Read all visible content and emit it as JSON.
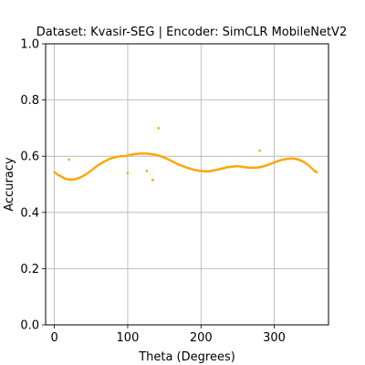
{
  "chart_data": {
    "type": "scatter",
    "title": "Dataset: Kvasir-SEG | Encoder: SimCLR MobileNetV2",
    "xlabel": "Theta (Degrees)",
    "ylabel": "Accuracy",
    "xlim": [
      -12,
      374
    ],
    "ylim": [
      0.0,
      1.0
    ],
    "xticks": [
      0,
      100,
      200,
      300
    ],
    "xtick_labels": [
      "0",
      "100",
      "200",
      "300"
    ],
    "yticks": [
      0.0,
      0.2,
      0.4,
      0.6,
      0.8,
      1.0
    ],
    "ytick_labels": [
      "0.0",
      "0.2",
      "0.4",
      "0.6",
      "0.8",
      "1.0"
    ],
    "grid": true,
    "color": "#FFA500",
    "series": [
      {
        "points": [
          [
            0,
            0.543
          ],
          [
            2,
            0.54
          ],
          [
            4,
            0.535
          ],
          [
            6,
            0.532
          ],
          [
            8,
            0.53
          ],
          [
            10,
            0.527
          ],
          [
            12,
            0.524
          ],
          [
            14,
            0.521
          ],
          [
            16,
            0.519
          ],
          [
            18,
            0.518
          ],
          [
            20,
            0.517
          ],
          [
            22,
            0.518
          ],
          [
            24,
            0.516
          ],
          [
            26,
            0.519
          ],
          [
            28,
            0.517
          ],
          [
            30,
            0.52
          ],
          [
            32,
            0.522
          ],
          [
            34,
            0.523
          ],
          [
            36,
            0.526
          ],
          [
            38,
            0.528
          ],
          [
            40,
            0.531
          ],
          [
            42,
            0.534
          ],
          [
            44,
            0.538
          ],
          [
            46,
            0.541
          ],
          [
            48,
            0.545
          ],
          [
            50,
            0.549
          ],
          [
            52,
            0.553
          ],
          [
            54,
            0.557
          ],
          [
            56,
            0.561
          ],
          [
            58,
            0.565
          ],
          [
            60,
            0.569
          ],
          [
            62,
            0.572
          ],
          [
            64,
            0.575
          ],
          [
            66,
            0.578
          ],
          [
            68,
            0.581
          ],
          [
            70,
            0.584
          ],
          [
            72,
            0.586
          ],
          [
            74,
            0.589
          ],
          [
            76,
            0.591
          ],
          [
            78,
            0.593
          ],
          [
            80,
            0.594
          ],
          [
            82,
            0.596
          ],
          [
            84,
            0.597
          ],
          [
            86,
            0.598
          ],
          [
            88,
            0.599
          ],
          [
            90,
            0.6
          ],
          [
            92,
            0.601
          ],
          [
            94,
            0.6
          ],
          [
            96,
            0.601
          ],
          [
            98,
            0.601
          ],
          [
            100,
            0.603
          ],
          [
            102,
            0.604
          ],
          [
            104,
            0.605
          ],
          [
            106,
            0.606
          ],
          [
            108,
            0.607
          ],
          [
            110,
            0.608
          ],
          [
            112,
            0.608
          ],
          [
            114,
            0.609
          ],
          [
            116,
            0.609
          ],
          [
            118,
            0.61
          ],
          [
            120,
            0.61
          ],
          [
            122,
            0.609
          ],
          [
            124,
            0.61
          ],
          [
            126,
            0.609
          ],
          [
            128,
            0.609
          ],
          [
            130,
            0.608
          ],
          [
            132,
            0.607
          ],
          [
            134,
            0.607
          ],
          [
            136,
            0.606
          ],
          [
            138,
            0.605
          ],
          [
            140,
            0.604
          ],
          [
            142,
            0.602
          ],
          [
            144,
            0.601
          ],
          [
            146,
            0.599
          ],
          [
            148,
            0.597
          ],
          [
            150,
            0.595
          ],
          [
            152,
            0.593
          ],
          [
            154,
            0.59
          ],
          [
            156,
            0.588
          ],
          [
            158,
            0.585
          ],
          [
            160,
            0.583
          ],
          [
            162,
            0.58
          ],
          [
            164,
            0.578
          ],
          [
            166,
            0.575
          ],
          [
            168,
            0.572
          ],
          [
            170,
            0.57
          ],
          [
            172,
            0.568
          ],
          [
            174,
            0.566
          ],
          [
            176,
            0.564
          ],
          [
            178,
            0.562
          ],
          [
            180,
            0.56
          ],
          [
            182,
            0.558
          ],
          [
            184,
            0.557
          ],
          [
            186,
            0.555
          ],
          [
            188,
            0.554
          ],
          [
            190,
            0.552
          ],
          [
            192,
            0.551
          ],
          [
            194,
            0.55
          ],
          [
            196,
            0.549
          ],
          [
            198,
            0.548
          ],
          [
            200,
            0.548
          ],
          [
            202,
            0.547
          ],
          [
            204,
            0.547
          ],
          [
            206,
            0.546
          ],
          [
            208,
            0.547
          ],
          [
            210,
            0.546
          ],
          [
            212,
            0.547
          ],
          [
            214,
            0.548
          ],
          [
            216,
            0.549
          ],
          [
            218,
            0.55
          ],
          [
            220,
            0.551
          ],
          [
            222,
            0.552
          ],
          [
            224,
            0.553
          ],
          [
            226,
            0.555
          ],
          [
            228,
            0.556
          ],
          [
            230,
            0.557
          ],
          [
            232,
            0.558
          ],
          [
            234,
            0.56
          ],
          [
            236,
            0.561
          ],
          [
            238,
            0.561
          ],
          [
            240,
            0.562
          ],
          [
            242,
            0.563
          ],
          [
            244,
            0.563
          ],
          [
            246,
            0.564
          ],
          [
            248,
            0.564
          ],
          [
            250,
            0.564
          ],
          [
            252,
            0.564
          ],
          [
            254,
            0.563
          ],
          [
            256,
            0.563
          ],
          [
            258,
            0.562
          ],
          [
            260,
            0.561
          ],
          [
            262,
            0.56
          ],
          [
            264,
            0.56
          ],
          [
            266,
            0.559
          ],
          [
            268,
            0.559
          ],
          [
            270,
            0.559
          ],
          [
            272,
            0.559
          ],
          [
            274,
            0.559
          ],
          [
            276,
            0.56
          ],
          [
            278,
            0.56
          ],
          [
            280,
            0.561
          ],
          [
            282,
            0.562
          ],
          [
            284,
            0.563
          ],
          [
            286,
            0.565
          ],
          [
            288,
            0.566
          ],
          [
            290,
            0.568
          ],
          [
            292,
            0.57
          ],
          [
            294,
            0.572
          ],
          [
            296,
            0.574
          ],
          [
            298,
            0.576
          ],
          [
            300,
            0.578
          ],
          [
            302,
            0.58
          ],
          [
            304,
            0.582
          ],
          [
            306,
            0.584
          ],
          [
            308,
            0.585
          ],
          [
            310,
            0.587
          ],
          [
            312,
            0.588
          ],
          [
            314,
            0.589
          ],
          [
            316,
            0.59
          ],
          [
            318,
            0.591
          ],
          [
            320,
            0.591
          ],
          [
            322,
            0.592
          ],
          [
            324,
            0.592
          ],
          [
            326,
            0.591
          ],
          [
            328,
            0.591
          ],
          [
            330,
            0.59
          ],
          [
            332,
            0.589
          ],
          [
            334,
            0.587
          ],
          [
            336,
            0.585
          ],
          [
            338,
            0.583
          ],
          [
            340,
            0.58
          ],
          [
            342,
            0.577
          ],
          [
            344,
            0.573
          ],
          [
            346,
            0.569
          ],
          [
            348,
            0.565
          ],
          [
            350,
            0.56
          ],
          [
            352,
            0.555
          ],
          [
            354,
            0.55
          ],
          [
            356,
            0.546
          ],
          [
            358,
            0.543
          ],
          [
            20,
            0.588
          ],
          [
            100,
            0.54
          ],
          [
            126,
            0.548
          ],
          [
            134,
            0.516
          ],
          [
            142,
            0.7
          ],
          [
            280,
            0.62
          ]
        ]
      }
    ]
  }
}
